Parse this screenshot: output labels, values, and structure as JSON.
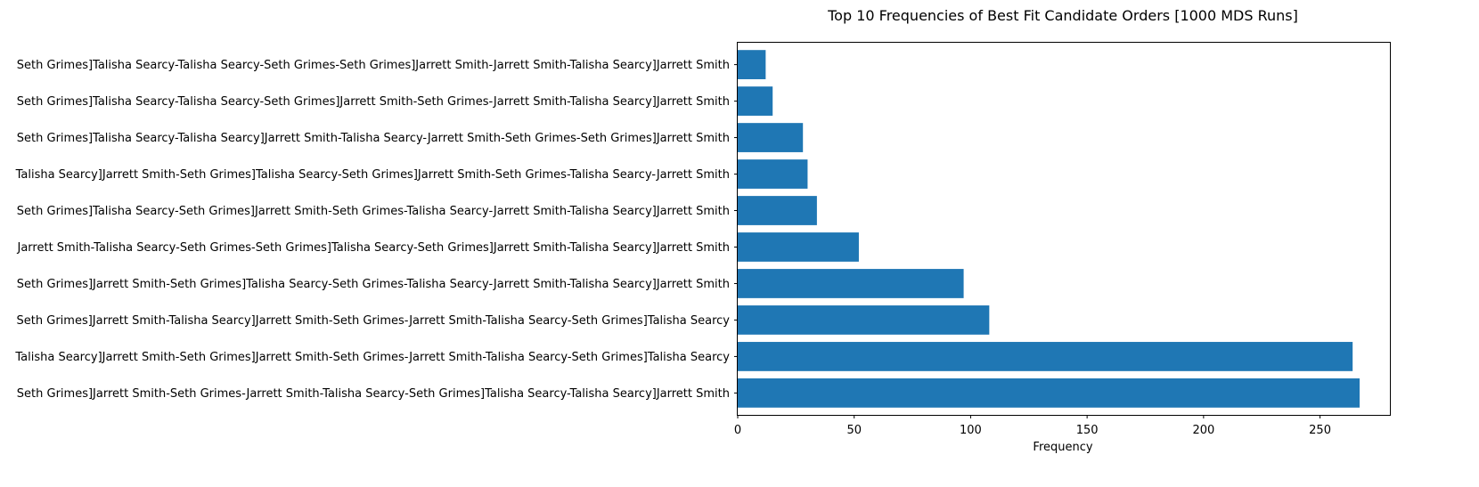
{
  "chart_data": {
    "type": "bar",
    "orientation": "horizontal",
    "title": "Top 10 Frequencies of Best Fit Candidate Orders [1000 MDS Runs]",
    "xlabel": "Frequency",
    "ylabel": "",
    "xlim": [
      0,
      280
    ],
    "xticks": [
      0,
      50,
      100,
      150,
      200,
      250
    ],
    "grid": false,
    "bar_color": "#1f77b4",
    "categories": [
      "Seth Grimes]Jarrett Smith-Seth Grimes-Jarrett Smith-Talisha Searcy-Seth Grimes]Talisha Searcy-Talisha Searcy]Jarrett Smith",
      "Talisha Searcy]Jarrett Smith-Seth Grimes]Jarrett Smith-Seth Grimes-Jarrett Smith-Talisha Searcy-Seth Grimes]Talisha Searcy",
      "Seth Grimes]Jarrett Smith-Talisha Searcy]Jarrett Smith-Seth Grimes-Jarrett Smith-Talisha Searcy-Seth Grimes]Talisha Searcy",
      "Seth Grimes]Jarrett Smith-Seth Grimes]Talisha Searcy-Seth Grimes-Talisha Searcy-Jarrett Smith-Talisha Searcy]Jarrett Smith",
      "Jarrett Smith-Talisha Searcy-Seth Grimes-Seth Grimes]Talisha Searcy-Seth Grimes]Jarrett Smith-Talisha Searcy]Jarrett Smith",
      "Seth Grimes]Talisha Searcy-Seth Grimes]Jarrett Smith-Seth Grimes-Talisha Searcy-Jarrett Smith-Talisha Searcy]Jarrett Smith",
      "Talisha Searcy]Jarrett Smith-Seth Grimes]Talisha Searcy-Seth Grimes]Jarrett Smith-Seth Grimes-Talisha Searcy-Jarrett Smith",
      "Seth Grimes]Talisha Searcy-Talisha Searcy]Jarrett Smith-Talisha Searcy-Jarrett Smith-Seth Grimes-Seth Grimes]Jarrett Smith",
      "Seth Grimes]Talisha Searcy-Talisha Searcy-Seth Grimes]Jarrett Smith-Seth Grimes-Jarrett Smith-Talisha Searcy]Jarrett Smith",
      "Seth Grimes]Talisha Searcy-Talisha Searcy-Seth Grimes-Seth Grimes]Jarrett Smith-Jarrett Smith-Talisha Searcy]Jarrett Smith"
    ],
    "values": [
      267,
      264,
      108,
      97,
      52,
      34,
      30,
      28,
      15,
      12
    ]
  }
}
